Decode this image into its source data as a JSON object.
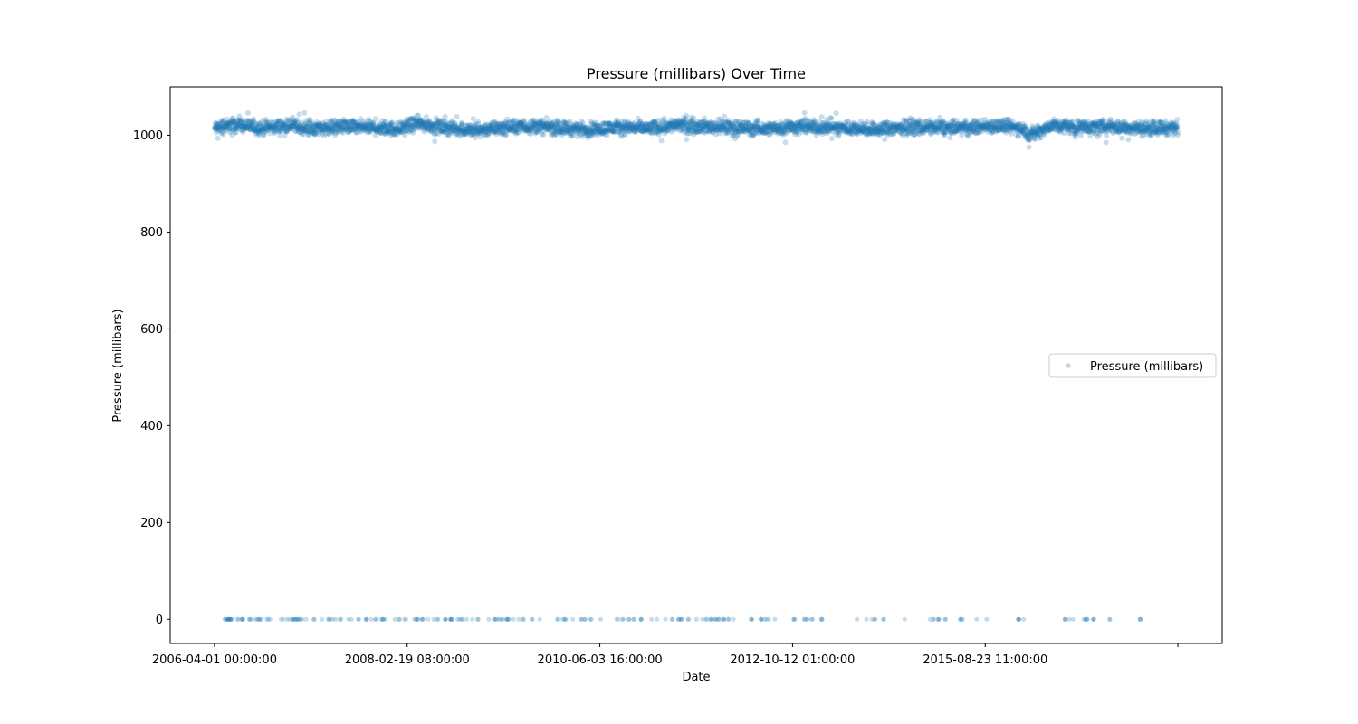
{
  "chart_data": {
    "type": "scatter",
    "title": "Pressure (millibars) Over Time",
    "xlabel": "Date",
    "ylabel": "Pressure (millibars)",
    "x_ticks": [
      "2006-04-01 00:00:00",
      "2008-02-19 08:00:00",
      "2010-06-03 16:00:00",
      "2012-10-12 01:00:00",
      "2015-08-23 11:00:00",
      ""
    ],
    "y_ticks": [
      0,
      200,
      400,
      600,
      800,
      1000
    ],
    "ylim": [
      -50,
      1100
    ],
    "xlim": [
      -0.046,
      1.046
    ],
    "grid": false,
    "legend_position": "center right",
    "color": "#1f77b4",
    "series": [
      {
        "name": "Pressure (millibars)",
        "marker_alpha": 0.25,
        "band": {
          "min": 975,
          "max": 1046,
          "typical_low": 1000,
          "typical_high": 1035,
          "mean": 1016
        },
        "x_fraction_points": [
          0.0,
          0.02,
          0.05,
          0.08,
          0.1,
          0.13,
          0.16,
          0.19,
          0.21,
          0.24,
          0.27,
          0.3,
          0.33,
          0.36,
          0.39,
          0.42,
          0.45,
          0.48,
          0.51,
          0.54,
          0.57,
          0.6,
          0.63,
          0.66,
          0.69,
          0.72,
          0.75,
          0.78,
          0.81,
          0.84,
          0.845,
          0.87,
          0.9,
          0.93,
          0.96,
          1.0
        ],
        "y_mean_points": [
          1014,
          1022,
          1015,
          1020,
          1014,
          1018,
          1016,
          1013,
          1024,
          1016,
          1010,
          1016,
          1019,
          1015,
          1012,
          1017,
          1014,
          1021,
          1018,
          1016,
          1013,
          1018,
          1016,
          1015,
          1012,
          1017,
          1016,
          1015,
          1020,
          1014,
          1000,
          1020,
          1016,
          1018,
          1014,
          1016
        ],
        "zero_value_x_fractions": [
          0.011,
          0.013,
          0.014,
          0.016,
          0.018,
          0.024,
          0.029,
          0.03,
          0.037,
          0.042,
          0.045,
          0.048,
          0.055,
          0.058,
          0.07,
          0.072,
          0.075,
          0.078,
          0.081,
          0.083,
          0.086,
          0.087,
          0.09,
          0.095,
          0.104,
          0.112,
          0.118,
          0.12,
          0.123,
          0.125,
          0.131,
          0.14,
          0.143,
          0.15,
          0.158,
          0.163,
          0.168,
          0.173,
          0.175,
          0.178,
          0.187,
          0.192,
          0.198,
          0.207,
          0.21,
          0.212,
          0.216,
          0.222,
          0.228,
          0.232,
          0.239,
          0.245,
          0.247,
          0.252,
          0.254,
          0.257,
          0.262,
          0.268,
          0.274,
          0.284,
          0.29,
          0.292,
          0.295,
          0.298,
          0.303,
          0.306,
          0.311,
          0.315,
          0.32,
          0.33,
          0.338,
          0.356,
          0.362,
          0.364,
          0.372,
          0.38,
          0.384,
          0.391,
          0.4,
          0.418,
          0.424,
          0.43,
          0.436,
          0.442,
          0.453,
          0.46,
          0.468,
          0.475,
          0.481,
          0.484,
          0.492,
          0.5,
          0.506,
          0.511,
          0.515,
          0.519,
          0.521,
          0.524,
          0.528,
          0.533,
          0.539,
          0.558,
          0.568,
          0.571,
          0.573,
          0.576,
          0.582,
          0.602,
          0.613,
          0.615,
          0.62,
          0.63,
          0.666,
          0.676,
          0.682,
          0.686,
          0.695,
          0.717,
          0.743,
          0.747,
          0.752,
          0.759,
          0.775,
          0.777,
          0.791,
          0.802,
          0.834,
          0.836,
          0.84,
          0.883,
          0.888,
          0.891,
          0.903,
          0.905,
          0.907,
          0.912,
          0.93,
          0.961
        ]
      }
    ]
  }
}
